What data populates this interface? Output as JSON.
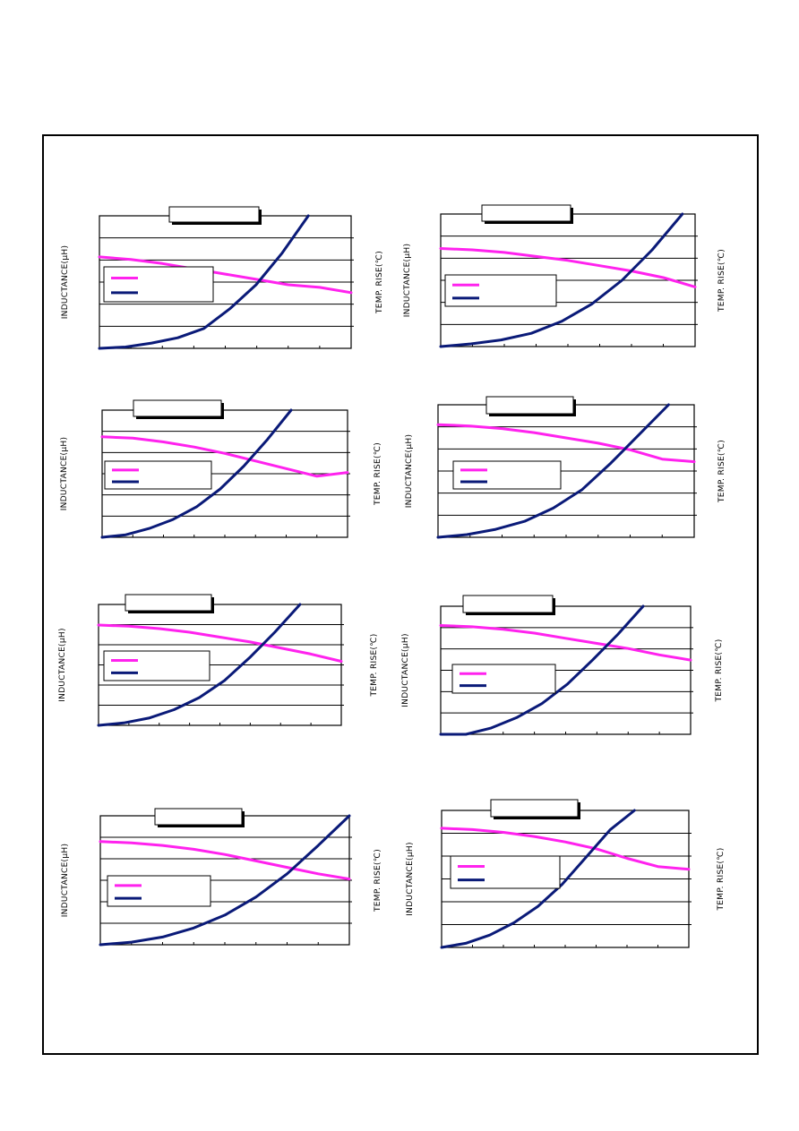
{
  "colors": {
    "inductance": "#ff22ee",
    "temp_rise": "#0a1a78",
    "axes": "#000000",
    "grid": "#000000"
  },
  "axis_labels": {
    "left": "INDUCTANCE(µH)",
    "right": "TEMP. RISE(℃)"
  },
  "chart_data": [
    {
      "type": "line",
      "title": "",
      "xlabel": "",
      "ylabel": "INDUCTANCE(µH)",
      "y2label": "TEMP. RISE(℃)",
      "legend": "left-middle",
      "grid": true,
      "series": [
        {
          "key": "inductance",
          "y": [
            0.69,
            0.67,
            0.64,
            0.6,
            0.56,
            0.52,
            0.48,
            0.46,
            0.42
          ]
        },
        {
          "key": "temp_rise",
          "y": [
            0.0,
            0.01,
            0.04,
            0.08,
            0.15,
            0.3,
            0.48,
            0.72,
            1.0
          ],
          "x_end": 0.83
        }
      ]
    },
    {
      "type": "line",
      "title": "",
      "xlabel": "",
      "ylabel": "INDUCTANCE(µH)",
      "y2label": "TEMP. RISE(℃)",
      "legend": "left-middle",
      "grid": true,
      "series": [
        {
          "key": "inductance",
          "y": [
            0.74,
            0.73,
            0.71,
            0.68,
            0.65,
            0.61,
            0.57,
            0.52,
            0.45
          ]
        },
        {
          "key": "temp_rise",
          "y": [
            0.0,
            0.02,
            0.05,
            0.1,
            0.19,
            0.32,
            0.5,
            0.73,
            1.0
          ],
          "x_end": 0.95
        }
      ]
    },
    {
      "type": "line",
      "title": "",
      "xlabel": "",
      "ylabel": "INDUCTANCE(µH)",
      "y2label": "TEMP. RISE(℃)",
      "legend": "left-middle",
      "grid": true,
      "series": [
        {
          "key": "inductance",
          "y": [
            0.79,
            0.78,
            0.75,
            0.71,
            0.66,
            0.6,
            0.54,
            0.48,
            0.51
          ]
        },
        {
          "key": "temp_rise",
          "y": [
            0.0,
            0.02,
            0.07,
            0.14,
            0.24,
            0.38,
            0.56,
            0.77,
            1.0
          ],
          "x_end": 0.77
        }
      ]
    },
    {
      "type": "line",
      "title": "",
      "xlabel": "",
      "ylabel": "INDUCTANCE(µH)",
      "y2label": "TEMP. RISE(℃)",
      "legend": "left-middle",
      "grid": true,
      "series": [
        {
          "key": "inductance",
          "y": [
            0.85,
            0.84,
            0.82,
            0.79,
            0.75,
            0.71,
            0.66,
            0.59,
            0.57
          ]
        },
        {
          "key": "temp_rise",
          "y": [
            0.0,
            0.02,
            0.06,
            0.12,
            0.22,
            0.36,
            0.56,
            0.78,
            1.0
          ],
          "x_end": 0.9
        }
      ]
    },
    {
      "type": "line",
      "title": "",
      "xlabel": "",
      "ylabel": "INDUCTANCE(µH)",
      "y2label": "TEMP. RISE(℃)",
      "legend": "left-middle",
      "grid": true,
      "series": [
        {
          "key": "inductance",
          "y": [
            0.83,
            0.82,
            0.8,
            0.77,
            0.73,
            0.69,
            0.64,
            0.59,
            0.53
          ]
        },
        {
          "key": "temp_rise",
          "y": [
            0.0,
            0.02,
            0.06,
            0.13,
            0.23,
            0.37,
            0.56,
            0.77,
            1.0
          ],
          "x_end": 0.83
        }
      ]
    },
    {
      "type": "line",
      "title": "",
      "xlabel": "",
      "ylabel": "INDUCTANCE(µH)",
      "y2label": "TEMP. RISE(℃)",
      "legend": "left-middle",
      "grid": true,
      "series": [
        {
          "key": "inductance",
          "y": [
            0.85,
            0.84,
            0.82,
            0.79,
            0.75,
            0.71,
            0.67,
            0.62,
            0.58
          ]
        },
        {
          "key": "temp_rise",
          "y": [
            0.0,
            0.0,
            0.05,
            0.13,
            0.24,
            0.39,
            0.58,
            0.78,
            1.0
          ],
          "x_end": 0.81
        }
      ]
    },
    {
      "type": "line",
      "title": "",
      "xlabel": "",
      "ylabel": "INDUCTANCE(µH)",
      "y2label": "TEMP. RISE(℃)",
      "legend": "left-middle",
      "grid": true,
      "series": [
        {
          "key": "inductance",
          "y": [
            0.8,
            0.79,
            0.77,
            0.74,
            0.7,
            0.65,
            0.6,
            0.55,
            0.51
          ]
        },
        {
          "key": "temp_rise",
          "y": [
            0.0,
            0.02,
            0.06,
            0.13,
            0.23,
            0.37,
            0.55,
            0.77,
            1.0
          ],
          "x_end": 1.0
        }
      ]
    },
    {
      "type": "line",
      "title": "",
      "xlabel": "",
      "ylabel": "INDUCTANCE(µH)",
      "y2label": "TEMP. RISE(℃)",
      "legend": "left-middle",
      "grid": true,
      "series": [
        {
          "key": "inductance",
          "y": [
            0.87,
            0.86,
            0.84,
            0.81,
            0.77,
            0.72,
            0.65,
            0.59,
            0.57
          ]
        },
        {
          "key": "temp_rise",
          "y": [
            0.0,
            0.03,
            0.09,
            0.18,
            0.3,
            0.46,
            0.66,
            0.86,
            1.0
          ],
          "x_end": 0.78
        }
      ]
    }
  ]
}
